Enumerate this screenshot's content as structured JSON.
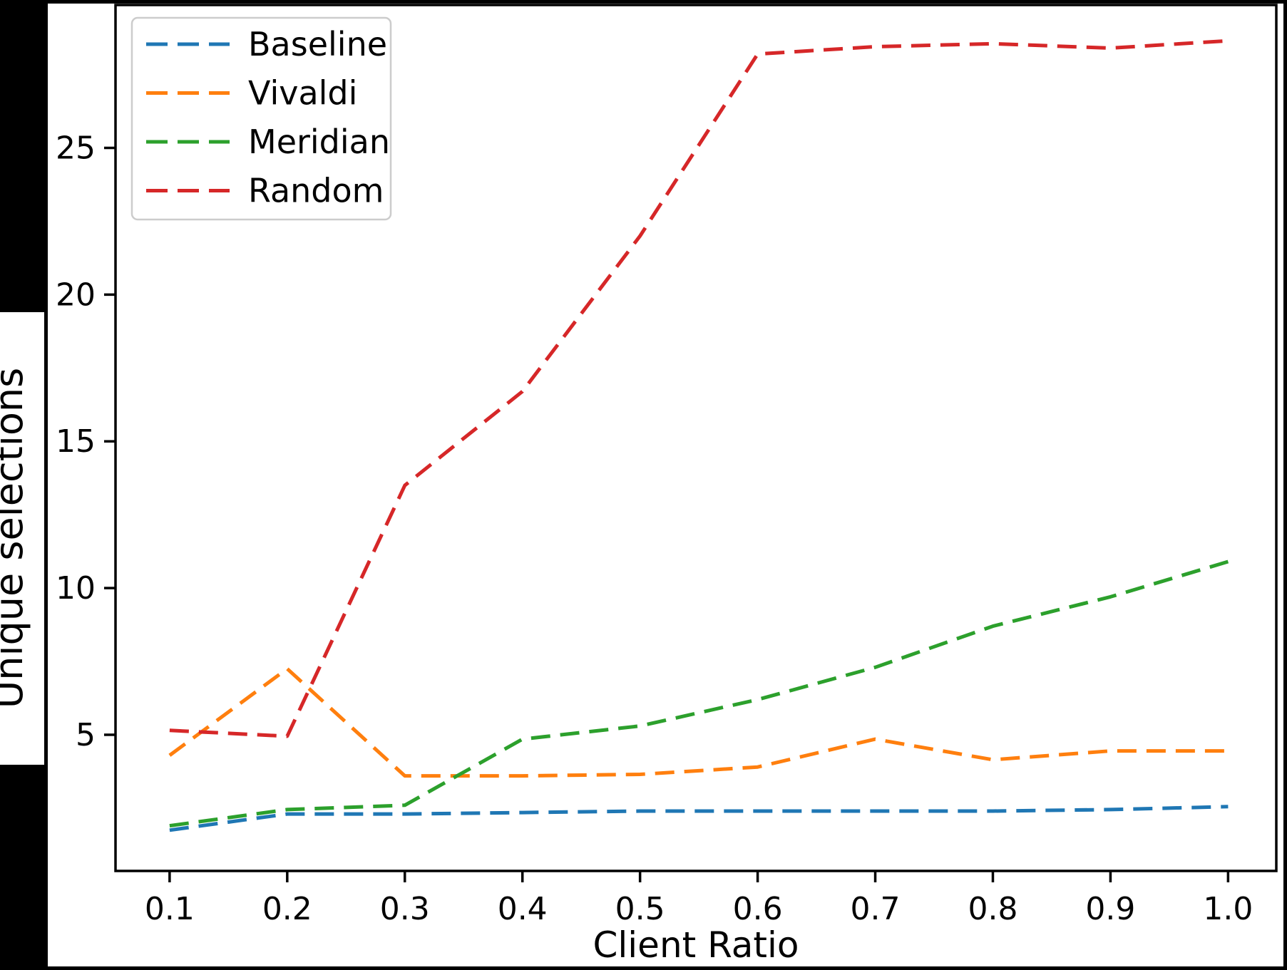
{
  "figure": {
    "page_background": "#000000",
    "canvas_background": "#ffffff",
    "spine_color": "#000000",
    "text_color": "#000000",
    "legend_border_color": "#cccccc"
  },
  "chart_data": {
    "type": "line",
    "title": "",
    "xlabel": "Client Ratio",
    "ylabel": "Unique selections",
    "line_style": "dashed",
    "grid": false,
    "legend_position": "upper-left",
    "x": [
      0.1,
      0.2,
      0.3,
      0.4,
      0.5,
      0.6,
      0.7,
      0.8,
      0.9,
      1.0
    ],
    "x_tick_labels": [
      "0.1",
      "0.2",
      "0.3",
      "0.4",
      "0.5",
      "0.6",
      "0.7",
      "0.8",
      "0.9",
      "1.0"
    ],
    "y_ticks": [
      5,
      10,
      15,
      20,
      25
    ],
    "y_tick_labels": [
      "5",
      "10",
      "15",
      "20",
      "25"
    ],
    "xlim": [
      0.054,
      1.041
    ],
    "ylim": [
      0.36,
      29.87
    ],
    "series": [
      {
        "name": "Baseline",
        "color": "#1f77b4",
        "values": [
          1.75,
          2.3,
          2.3,
          2.35,
          2.4,
          2.4,
          2.4,
          2.4,
          2.45,
          2.55
        ]
      },
      {
        "name": "Vivaldi",
        "color": "#ff7f0e",
        "values": [
          4.3,
          7.25,
          3.6,
          3.6,
          3.65,
          3.9,
          4.85,
          4.15,
          4.45,
          4.45
        ]
      },
      {
        "name": "Meridian",
        "color": "#2ca02c",
        "values": [
          1.9,
          2.45,
          2.6,
          4.85,
          5.3,
          6.2,
          7.3,
          8.7,
          9.7,
          10.9
        ]
      },
      {
        "name": "Random",
        "color": "#d62728",
        "values": [
          5.15,
          4.95,
          13.5,
          16.7,
          22.0,
          28.2,
          28.45,
          28.55,
          28.4,
          28.65
        ]
      }
    ]
  }
}
